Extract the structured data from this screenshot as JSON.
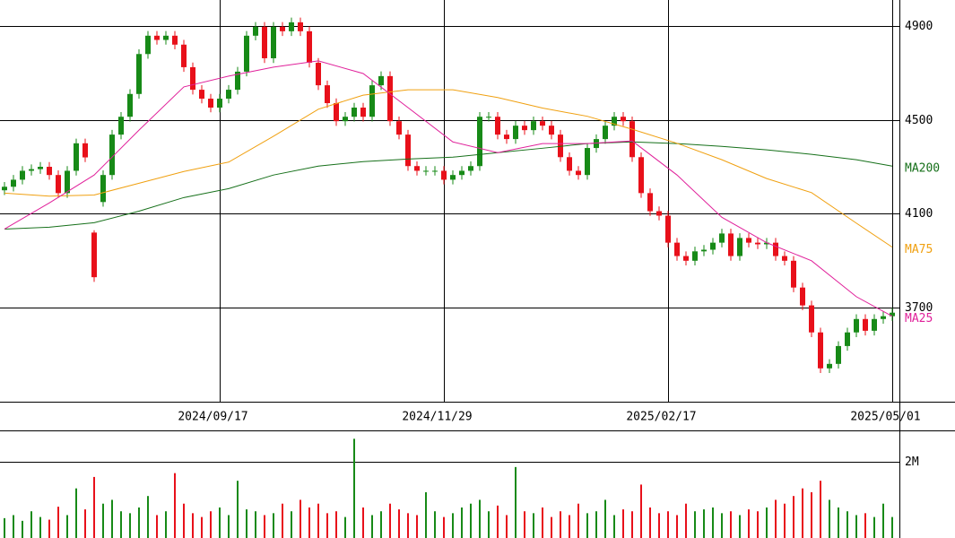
{
  "chart_data": {
    "type": "candlestick",
    "categories": [
      null,
      null,
      null,
      null,
      null,
      null,
      null,
      null,
      null,
      null,
      null,
      null,
      null,
      null,
      null,
      null,
      null,
      null,
      null,
      null,
      null,
      null,
      null,
      null,
      "2024/09/17",
      null,
      null,
      null,
      null,
      null,
      null,
      null,
      null,
      null,
      null,
      null,
      null,
      null,
      null,
      null,
      null,
      null,
      null,
      null,
      null,
      null,
      null,
      null,
      null,
      "2024/11/29",
      null,
      null,
      null,
      null,
      null,
      null,
      null,
      null,
      null,
      null,
      null,
      null,
      null,
      null,
      null,
      null,
      null,
      null,
      null,
      null,
      null,
      null,
      null,
      null,
      "2025/02/17",
      null,
      null,
      null,
      null,
      null,
      null,
      null,
      null,
      null,
      null,
      null,
      null,
      null,
      null,
      null,
      null,
      null,
      null,
      null,
      null,
      null,
      null,
      null,
      null,
      "2025/05/01"
    ],
    "open": [
      4200,
      4215,
      4245,
      4283,
      4290,
      4300,
      4265,
      4188,
      4283,
      4400,
      4020,
      4150,
      4265,
      4437,
      4513,
      4610,
      4780,
      4858,
      4840,
      4858,
      4820,
      4724,
      4628,
      4590,
      4552,
      4590,
      4628,
      4705,
      4858,
      4896,
      4762,
      4896,
      4877,
      4915,
      4877,
      4743,
      4647,
      4571,
      4494,
      4513,
      4552,
      4513,
      4647,
      4686,
      4494,
      4437,
      4303,
      4283,
      4283,
      4283,
      4245,
      4265,
      4283,
      4303,
      4513,
      4513,
      4437,
      4418,
      4475,
      4456,
      4494,
      4475,
      4437,
      4341,
      4283,
      4265,
      4380,
      4418,
      4475,
      4513,
      4494,
      4341,
      4188,
      4111,
      4092,
      3977,
      3920,
      3900,
      3940,
      3947,
      3977,
      4016,
      3920,
      3997,
      3977,
      3970,
      3977,
      3920,
      3900,
      3786,
      3710,
      3595,
      3442,
      3461,
      3537,
      3595,
      3652,
      3602,
      3652,
      3664
    ],
    "high": [
      4235,
      4265,
      4303,
      4310,
      4320,
      4320,
      4285,
      4303,
      4420,
      4420,
      4030,
      4285,
      4457,
      4533,
      4630,
      4800,
      4878,
      4878,
      4878,
      4878,
      4840,
      4744,
      4648,
      4610,
      4610,
      4648,
      4725,
      4878,
      4916,
      4916,
      4916,
      4916,
      4935,
      4935,
      4897,
      4763,
      4667,
      4591,
      4533,
      4572,
      4572,
      4667,
      4706,
      4706,
      4514,
      4457,
      4323,
      4303,
      4303,
      4303,
      4285,
      4303,
      4323,
      4533,
      4533,
      4533,
      4457,
      4495,
      4495,
      4514,
      4514,
      4495,
      4457,
      4361,
      4303,
      4400,
      4438,
      4495,
      4533,
      4533,
      4514,
      4361,
      4208,
      4131,
      4112,
      3997,
      3940,
      3960,
      3967,
      3997,
      4036,
      4036,
      4017,
      4017,
      3997,
      3997,
      3997,
      3940,
      3920,
      3806,
      3730,
      3615,
      3481,
      3557,
      3615,
      3672,
      3672,
      3672,
      3684,
      3699
    ],
    "low": [
      4180,
      4195,
      4225,
      4263,
      4270,
      4245,
      4168,
      4168,
      4263,
      4320,
      3810,
      4130,
      4245,
      4417,
      4493,
      4590,
      4760,
      4820,
      4820,
      4800,
      4704,
      4608,
      4570,
      4532,
      4532,
      4570,
      4608,
      4685,
      4838,
      4742,
      4742,
      4857,
      4857,
      4857,
      4723,
      4627,
      4551,
      4474,
      4474,
      4493,
      4493,
      4493,
      4627,
      4474,
      4417,
      4283,
      4263,
      4263,
      4263,
      4225,
      4225,
      4245,
      4263,
      4283,
      4493,
      4417,
      4398,
      4398,
      4436,
      4436,
      4455,
      4417,
      4321,
      4263,
      4245,
      4245,
      4360,
      4398,
      4455,
      4474,
      4321,
      4168,
      4091,
      4072,
      3957,
      3900,
      3880,
      3880,
      3920,
      3927,
      3957,
      3900,
      3900,
      3957,
      3950,
      3950,
      3900,
      3880,
      3766,
      3690,
      3575,
      3422,
      3422,
      3441,
      3517,
      3575,
      3582,
      3582,
      3632,
      3644
    ],
    "close": [
      4215,
      4245,
      4283,
      4290,
      4300,
      4265,
      4188,
      4283,
      4400,
      4340,
      3830,
      4265,
      4437,
      4513,
      4610,
      4780,
      4858,
      4840,
      4858,
      4820,
      4724,
      4628,
      4590,
      4552,
      4590,
      4628,
      4705,
      4858,
      4896,
      4762,
      4896,
      4877,
      4915,
      4877,
      4743,
      4647,
      4571,
      4494,
      4513,
      4552,
      4513,
      4647,
      4686,
      4494,
      4437,
      4303,
      4283,
      4283,
      4283,
      4245,
      4265,
      4283,
      4303,
      4513,
      4513,
      4437,
      4418,
      4475,
      4456,
      4494,
      4475,
      4437,
      4341,
      4283,
      4265,
      4380,
      4418,
      4475,
      4513,
      4494,
      4341,
      4188,
      4111,
      4092,
      3977,
      3920,
      3900,
      3940,
      3947,
      3977,
      4016,
      3920,
      3997,
      3977,
      3970,
      3977,
      3920,
      3900,
      3786,
      3710,
      3595,
      3442,
      3461,
      3537,
      3595,
      3652,
      3602,
      3652,
      3664,
      3679
    ],
    "up_color": "#178a17",
    "down_color": "#e8101a",
    "ylim": [
      3300,
      5010
    ],
    "yticks": [
      3700,
      4100,
      4500,
      4900
    ],
    "series": [
      {
        "name": "MA200",
        "color": "#16701a",
        "x": [
          0,
          5,
          10,
          15,
          20,
          25,
          30,
          35,
          40,
          45,
          50,
          55,
          60,
          65,
          70,
          75,
          80,
          85,
          90,
          95,
          99
        ],
        "values": [
          4035,
          4043,
          4062,
          4111,
          4169,
          4207,
          4265,
          4303,
          4322,
          4333,
          4341,
          4360,
          4379,
          4399,
          4406,
          4399,
          4387,
          4372,
          4353,
          4330,
          4303
        ]
      },
      {
        "name": "MA75",
        "color": "#f0a010",
        "x": [
          0,
          5,
          10,
          15,
          20,
          25,
          30,
          35,
          40,
          45,
          50,
          55,
          60,
          65,
          70,
          75,
          80,
          85,
          90,
          95,
          99
        ],
        "values": [
          4188,
          4175,
          4180,
          4230,
          4280,
          4320,
          4430,
          4545,
          4605,
          4628,
          4628,
          4595,
          4550,
          4515,
          4460,
          4400,
          4330,
          4250,
          4190,
          4060,
          3958
        ]
      },
      {
        "name": "MA25",
        "color": "#e0209a",
        "x": [
          0,
          5,
          10,
          15,
          20,
          25,
          30,
          35,
          40,
          45,
          50,
          55,
          60,
          65,
          70,
          75,
          80,
          85,
          90,
          95,
          99
        ],
        "values": [
          4035,
          4146,
          4265,
          4456,
          4640,
          4686,
          4724,
          4751,
          4697,
          4552,
          4406,
          4360,
          4399,
          4399,
          4410,
          4265,
          4085,
          3977,
          3900,
          3747,
          3664
        ]
      }
    ],
    "volume": {
      "values": [
        520000,
        600000,
        450000,
        700000,
        550000,
        480000,
        820000,
        600000,
        1300000,
        750000,
        1600000,
        900000,
        1000000,
        700000,
        650000,
        800000,
        1100000,
        600000,
        700000,
        1700000,
        900000,
        650000,
        550000,
        700000,
        800000,
        600000,
        1500000,
        750000,
        700000,
        600000,
        650000,
        900000,
        700000,
        1000000,
        800000,
        900000,
        650000,
        700000,
        550000,
        2600000,
        800000,
        600000,
        700000,
        900000,
        750000,
        650000,
        600000,
        1200000,
        700000,
        550000,
        650000,
        800000,
        900000,
        1000000,
        700000,
        850000,
        600000,
        1860000,
        700000,
        650000,
        800000,
        550000,
        700000,
        600000,
        900000,
        650000,
        700000,
        1000000,
        600000,
        750000,
        700000,
        1400000,
        800000,
        650000,
        700000,
        600000,
        900000,
        700000,
        750000,
        800000,
        650000,
        700000,
        600000,
        750000,
        700000,
        800000,
        1000000,
        900000,
        1100000,
        1300000,
        1200000,
        1500000,
        1000000,
        800000,
        700000,
        600000,
        650000,
        550000,
        900000,
        550000
      ],
      "ylim": [
        0,
        2820000
      ],
      "yticks": [
        {
          "value": 2000000,
          "label": "2M"
        }
      ]
    }
  }
}
